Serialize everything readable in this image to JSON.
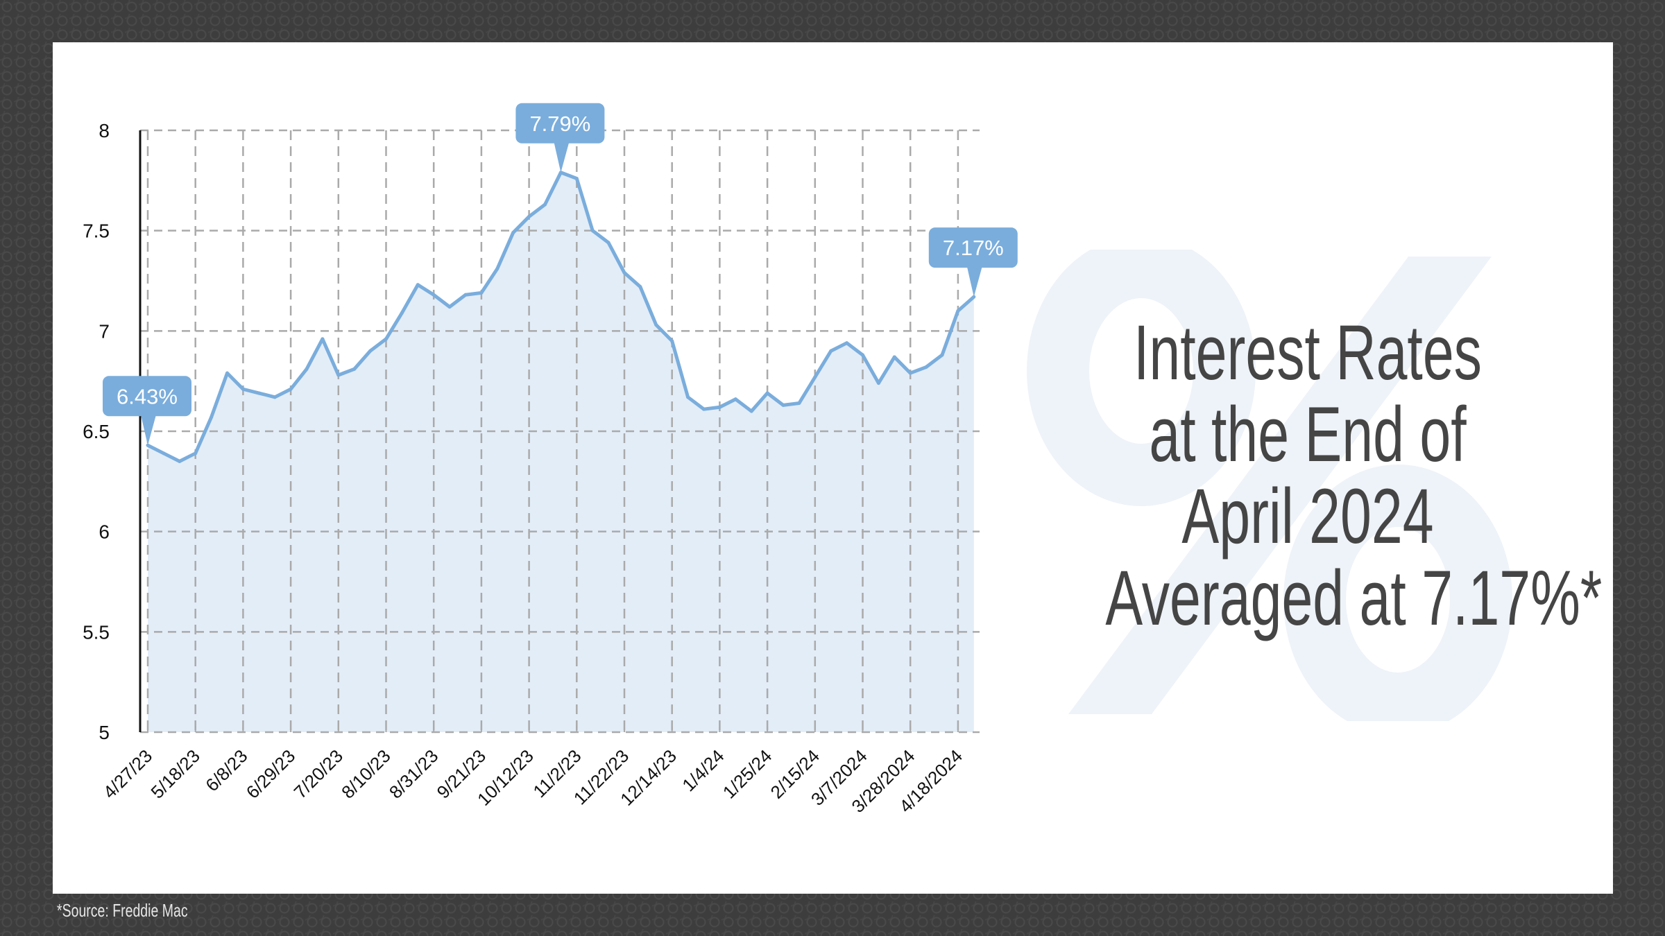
{
  "headline": [
    "Interest Rates",
    "at the End of",
    "April 2024",
    "Averaged at 7.17%*"
  ],
  "watermark": "%",
  "source": "*Source: Freddie Mac",
  "colors": {
    "line": "#7aaddc",
    "fill": "#e3edf8",
    "callout": "#7aaddc",
    "grid": "#aaaaaa",
    "headline": "#454545",
    "watermark": "#eef3f9"
  },
  "chart_data": {
    "type": "area",
    "title": "",
    "xlabel": "",
    "ylabel": "",
    "ylim": [
      5,
      8
    ],
    "y_ticks": [
      "5",
      "5.5",
      "6",
      "6.5",
      "7",
      "7.5",
      "8"
    ],
    "grid": true,
    "x_tick_labels": [
      "4/27/23",
      "5/18/23",
      "6/8/23",
      "6/29/23",
      "7/20/23",
      "8/10/23",
      "8/31/23",
      "9/21/23",
      "10/12/23",
      "11/2/23",
      "11/22/23",
      "12/14/23",
      "1/4/24",
      "1/25/24",
      "2/15/24",
      "3/7/2024",
      "3/28/2024",
      "4/18/2024"
    ],
    "values": [
      6.43,
      6.39,
      6.35,
      6.39,
      6.57,
      6.79,
      6.71,
      6.69,
      6.67,
      6.71,
      6.81,
      6.96,
      6.78,
      6.81,
      6.9,
      6.96,
      7.09,
      7.23,
      7.18,
      7.12,
      7.18,
      7.19,
      7.31,
      7.49,
      7.57,
      7.63,
      7.79,
      7.76,
      7.5,
      7.44,
      7.29,
      7.22,
      7.03,
      6.95,
      6.67,
      6.61,
      6.62,
      6.66,
      6.6,
      6.69,
      6.63,
      6.64,
      6.77,
      6.9,
      6.94,
      6.88,
      6.74,
      6.87,
      6.79,
      6.82,
      6.88,
      7.1,
      7.17
    ],
    "annotations": [
      {
        "index": 0,
        "label": "6.43%"
      },
      {
        "index": 26,
        "label": "7.79%"
      },
      {
        "index": 52,
        "label": "7.17%"
      }
    ]
  }
}
